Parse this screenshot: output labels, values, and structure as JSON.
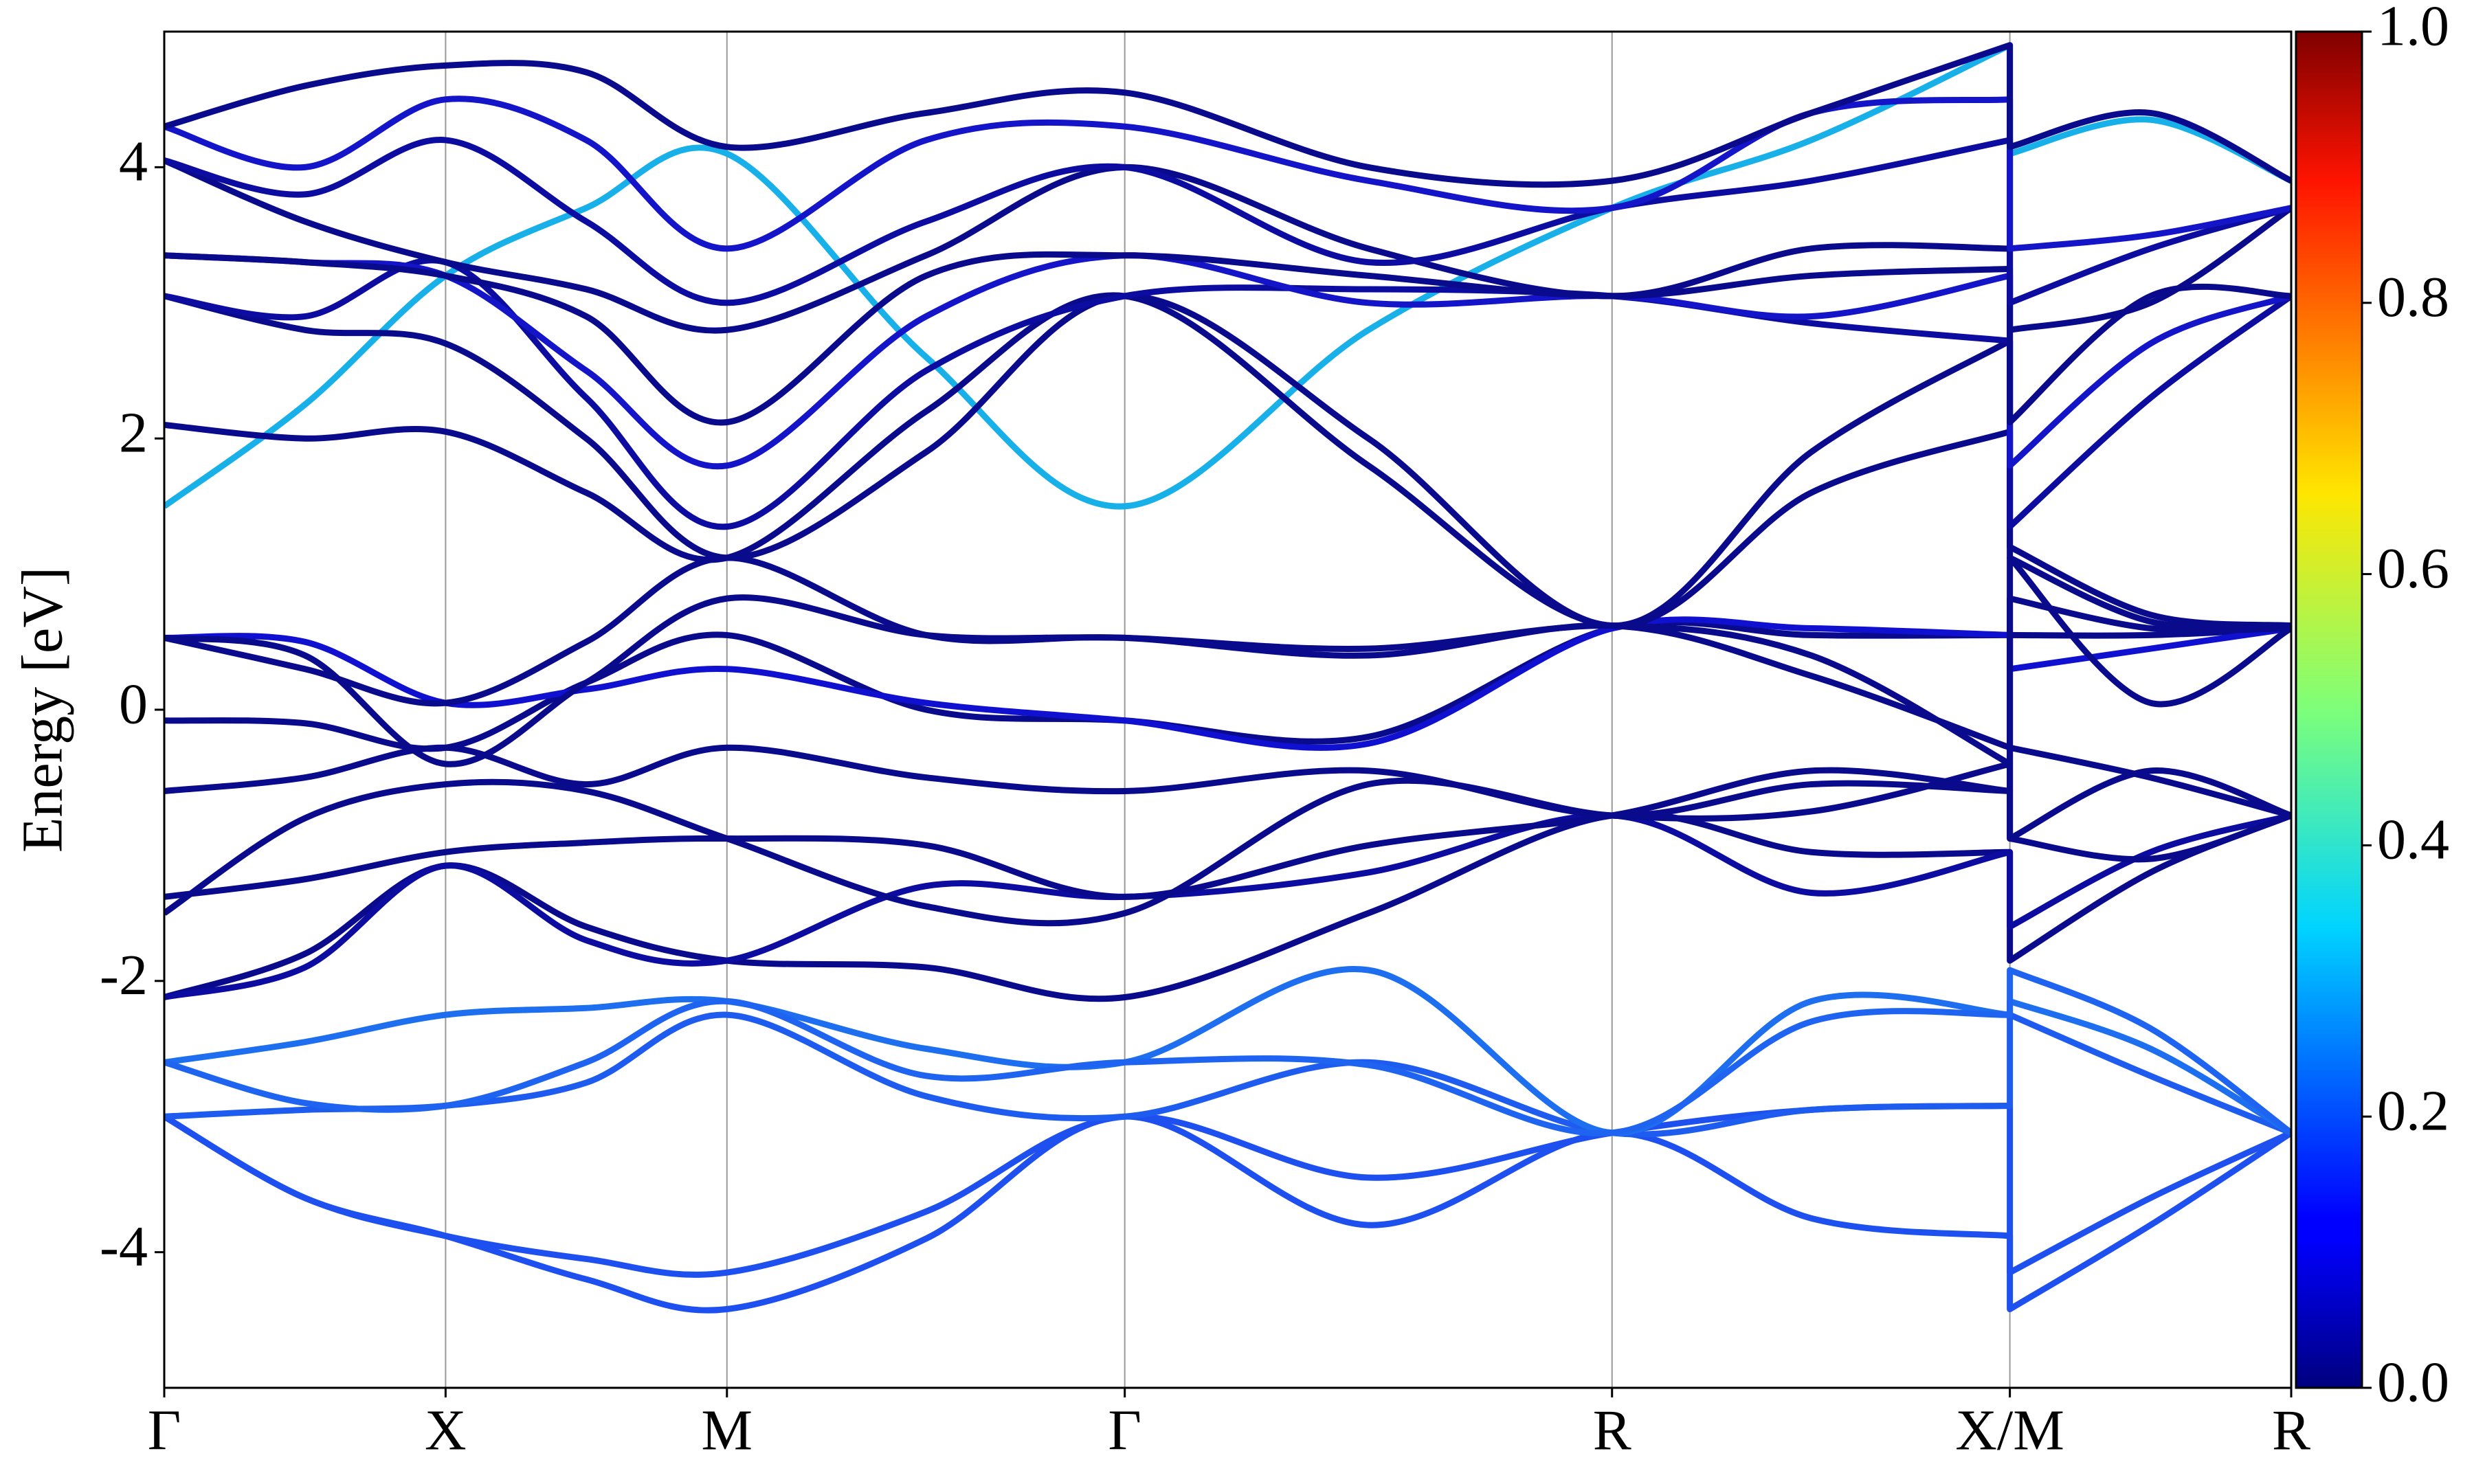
{
  "chart_data": {
    "type": "line",
    "y_label": "Energy [eV]",
    "x": [
      0,
      0.25,
      0.5,
      0.75,
      1.0,
      1.354,
      1.707,
      2.14,
      2.573,
      2.927,
      3.28,
      3.28,
      3.53,
      3.78
    ],
    "xlim": [
      0,
      3.78
    ],
    "xticks": [
      {
        "value": 0,
        "label": "Γ"
      },
      {
        "value": 0.5,
        "label": "X"
      },
      {
        "value": 1.0,
        "label": "M"
      },
      {
        "value": 1.707,
        "label": "Γ"
      },
      {
        "value": 2.573,
        "label": "R"
      },
      {
        "value": 3.28,
        "label": "X/M"
      },
      {
        "value": 3.78,
        "label": "R"
      }
    ],
    "ylim": [
      -5,
      5
    ],
    "yticks": [
      -4,
      -2,
      0,
      2,
      4
    ],
    "grid": "x",
    "colorbar": {
      "lim": [
        0,
        1
      ],
      "ticks": [
        {
          "value": 0,
          "label": "0.0"
        },
        {
          "value": 0.2,
          "label": "0.2"
        },
        {
          "value": 0.4,
          "label": "0.4"
        },
        {
          "value": 0.6,
          "label": "0.6"
        },
        {
          "value": 0.8,
          "label": "0.8"
        },
        {
          "value": 1,
          "label": "1.0"
        }
      ]
    },
    "series": [
      {
        "color": "#1e50f0",
        "values": [
          -3.0,
          -3.6,
          -3.88,
          -4.2,
          -4.42,
          -3.9,
          -3.0,
          -3.8,
          -3.12,
          -3.75,
          -3.88,
          -4.42,
          -3.8,
          -3.12
        ]
      },
      {
        "color": "#1e50f0",
        "values": [
          -3.0,
          -3.6,
          -3.88,
          -4.05,
          -4.15,
          -3.7,
          -3.0,
          -3.45,
          -3.12,
          -2.95,
          -2.92,
          -4.15,
          -3.6,
          -3.12
        ]
      },
      {
        "color": "#1e5cf0",
        "values": [
          -3.0,
          -2.95,
          -2.92,
          -2.75,
          -2.25,
          -2.85,
          -3.0,
          -2.6,
          -3.12,
          -2.95,
          -2.92,
          -2.25,
          -2.7,
          -3.12
        ]
      },
      {
        "color": "#1e6ef0",
        "values": [
          -2.6,
          -2.45,
          -2.25,
          -2.2,
          -2.15,
          -2.5,
          -2.6,
          -1.92,
          -3.12,
          -2.15,
          -2.25,
          -2.15,
          -2.5,
          -3.12
        ]
      },
      {
        "color": "#1e64f0",
        "values": [
          -2.6,
          -2.9,
          -2.92,
          -2.6,
          -2.15,
          -2.7,
          -2.6,
          -2.62,
          -3.12,
          -2.3,
          -2.25,
          -1.92,
          -2.35,
          -3.12
        ]
      },
      {
        "color": "#0a0a8c",
        "values": [
          -2.12,
          -1.8,
          -1.15,
          -1.6,
          -1.85,
          -1.9,
          -2.12,
          -1.5,
          -0.78,
          -1.05,
          -1.05,
          -1.85,
          -1.2,
          -0.78
        ]
      },
      {
        "color": "#0c0ca0",
        "values": [
          -2.12,
          -1.9,
          -1.15,
          -1.7,
          -1.85,
          -1.3,
          -1.38,
          -1.2,
          -0.78,
          -1.35,
          -1.05,
          -1.6,
          -1.05,
          -0.78
        ]
      },
      {
        "color": "#0a0a8c",
        "values": [
          -1.38,
          -1.25,
          -1.05,
          -0.98,
          -0.95,
          -1.0,
          -1.38,
          -1.0,
          -0.78,
          -0.45,
          -0.6,
          -0.95,
          -1.1,
          -0.78
        ]
      },
      {
        "color": "#0a0a8c",
        "values": [
          -1.5,
          -0.8,
          -0.55,
          -0.6,
          -0.95,
          -1.45,
          -1.5,
          -0.55,
          -0.78,
          -0.75,
          -0.4,
          -0.95,
          -0.45,
          -0.78
        ]
      },
      {
        "color": "#0a0a8c",
        "values": [
          -0.6,
          -0.5,
          -0.28,
          -0.55,
          -0.28,
          -0.5,
          -0.6,
          -0.45,
          -0.78,
          -0.55,
          -0.6,
          -0.28,
          -0.5,
          -0.78
        ]
      },
      {
        "color": "#0a0a8c",
        "values": [
          -0.08,
          -0.1,
          -0.28,
          0.2,
          0.55,
          0.0,
          -0.08,
          -0.2,
          0.6,
          0.55,
          0.55,
          0.55,
          0.55,
          0.6
        ]
      },
      {
        "color": "#1010d0",
        "values": [
          0.53,
          0.5,
          0.05,
          0.15,
          0.3,
          0.05,
          -0.08,
          -0.25,
          0.6,
          0.6,
          0.55,
          0.3,
          0.45,
          0.6
        ]
      },
      {
        "color": "#0a0a8c",
        "values": [
          0.53,
          0.4,
          -0.4,
          0.2,
          0.82,
          0.55,
          0.53,
          0.45,
          0.62,
          0.4,
          -0.4,
          0.82,
          0.6,
          0.6
        ]
      },
      {
        "color": "#0a0a8c",
        "values": [
          0.53,
          0.3,
          0.05,
          0.5,
          1.12,
          0.55,
          0.53,
          0.4,
          0.62,
          0.25,
          -0.28,
          1.12,
          0.05,
          0.6
        ]
      },
      {
        "color": "#18b0e8",
        "values": [
          1.5,
          2.25,
          3.2,
          3.7,
          4.1,
          2.6,
          1.5,
          2.8,
          3.7,
          4.2,
          4.9,
          4.1,
          4.35,
          3.9
        ]
      },
      {
        "color": "#0a0a8c",
        "values": [
          2.1,
          2.0,
          2.05,
          1.6,
          1.12,
          2.2,
          3.05,
          1.8,
          0.62,
          1.6,
          2.05,
          1.12,
          0.65,
          0.62
        ]
      },
      {
        "color": "#0a0a8c",
        "values": [
          3.05,
          2.8,
          2.7,
          2.0,
          1.12,
          1.9,
          3.05,
          2.0,
          0.62,
          1.9,
          2.72,
          1.2,
          0.7,
          0.62
        ]
      },
      {
        "color": "#0c0ca0",
        "values": [
          3.05,
          2.9,
          3.3,
          2.3,
          1.35,
          2.5,
          3.05,
          3.1,
          3.05,
          2.85,
          2.72,
          1.35,
          2.3,
          3.05
        ]
      },
      {
        "color": "#1414c8",
        "values": [
          3.35,
          3.3,
          3.2,
          2.5,
          1.8,
          2.9,
          3.35,
          3.0,
          3.05,
          2.9,
          3.2,
          1.8,
          2.7,
          3.05
        ]
      },
      {
        "color": "#0a0a8c",
        "values": [
          3.35,
          3.3,
          3.2,
          2.9,
          2.12,
          3.2,
          3.35,
          3.2,
          3.05,
          3.2,
          3.25,
          2.12,
          3.05,
          3.05
        ]
      },
      {
        "color": "#0a0a8c",
        "values": [
          4.05,
          3.6,
          3.3,
          3.1,
          2.8,
          3.35,
          4.0,
          3.4,
          3.05,
          3.4,
          3.4,
          2.8,
          3.0,
          3.7
        ]
      },
      {
        "color": "#0c0ca0",
        "values": [
          4.05,
          3.8,
          4.2,
          3.6,
          3.0,
          3.6,
          4.0,
          3.3,
          3.7,
          3.9,
          4.2,
          3.0,
          3.4,
          3.7
        ]
      },
      {
        "color": "#1414c8",
        "values": [
          4.3,
          4.0,
          4.5,
          4.2,
          3.4,
          4.2,
          4.3,
          3.9,
          3.7,
          4.4,
          4.5,
          3.4,
          3.5,
          3.7
        ]
      },
      {
        "color": "#0a0a8c",
        "values": [
          4.3,
          4.6,
          4.75,
          4.7,
          4.15,
          4.4,
          4.55,
          4.0,
          3.9,
          4.4,
          4.9,
          4.15,
          4.4,
          3.9
        ]
      }
    ]
  }
}
